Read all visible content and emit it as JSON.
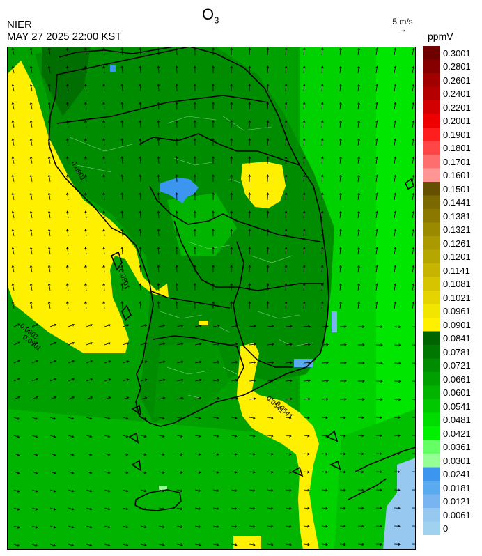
{
  "header": {
    "title_main": "O",
    "title_sub": "3",
    "agency": "NIER",
    "timestamp": "MAY 27 2025 22:00 KST",
    "vector_scale": "5 m/s",
    "vector_arrow": "→",
    "unit": "ppmV"
  },
  "map": {
    "contour_labels": [
      "0.0901",
      "0.0901",
      "0.0901",
      "0.0541",
      "0.0541",
      "0.0901"
    ]
  },
  "legend": {
    "ticks": [
      "0.3001",
      "0.2801",
      "0.2601",
      "0.2401",
      "0.2201",
      "0.2001",
      "0.1901",
      "0.1801",
      "0.1701",
      "0.1601",
      "0.1501",
      "0.1441",
      "0.1381",
      "0.1321",
      "0.1261",
      "0.1201",
      "0.1141",
      "0.1081",
      "0.1021",
      "0.0961",
      "0.0901",
      "0.0841",
      "0.0781",
      "0.0721",
      "0.0661",
      "0.0601",
      "0.0541",
      "0.0481",
      "0.0421",
      "0.0361",
      "0.0301",
      "0.0241",
      "0.0181",
      "0.0121",
      "0.0061",
      "0"
    ],
    "colors": [
      "#6e0000",
      "#870000",
      "#a00000",
      "#b40000",
      "#d20000",
      "#ee0000",
      "#ff1e1e",
      "#ff4646",
      "#ff6e6e",
      "#ff9696",
      "#645000",
      "#7a6900",
      "#8a7800",
      "#9a8a00",
      "#aa9a00",
      "#b6a600",
      "#c6b400",
      "#d6c400",
      "#e6d400",
      "#f0e600",
      "#fff000",
      "#006400",
      "#007800",
      "#008c00",
      "#00a000",
      "#00b400",
      "#00c800",
      "#00dc00",
      "#00f000",
      "#64ff64",
      "#96ff96",
      "#3c96f0",
      "#5aaaf0",
      "#78b4f0",
      "#96c8f0",
      "#a0d2f0"
    ]
  }
}
